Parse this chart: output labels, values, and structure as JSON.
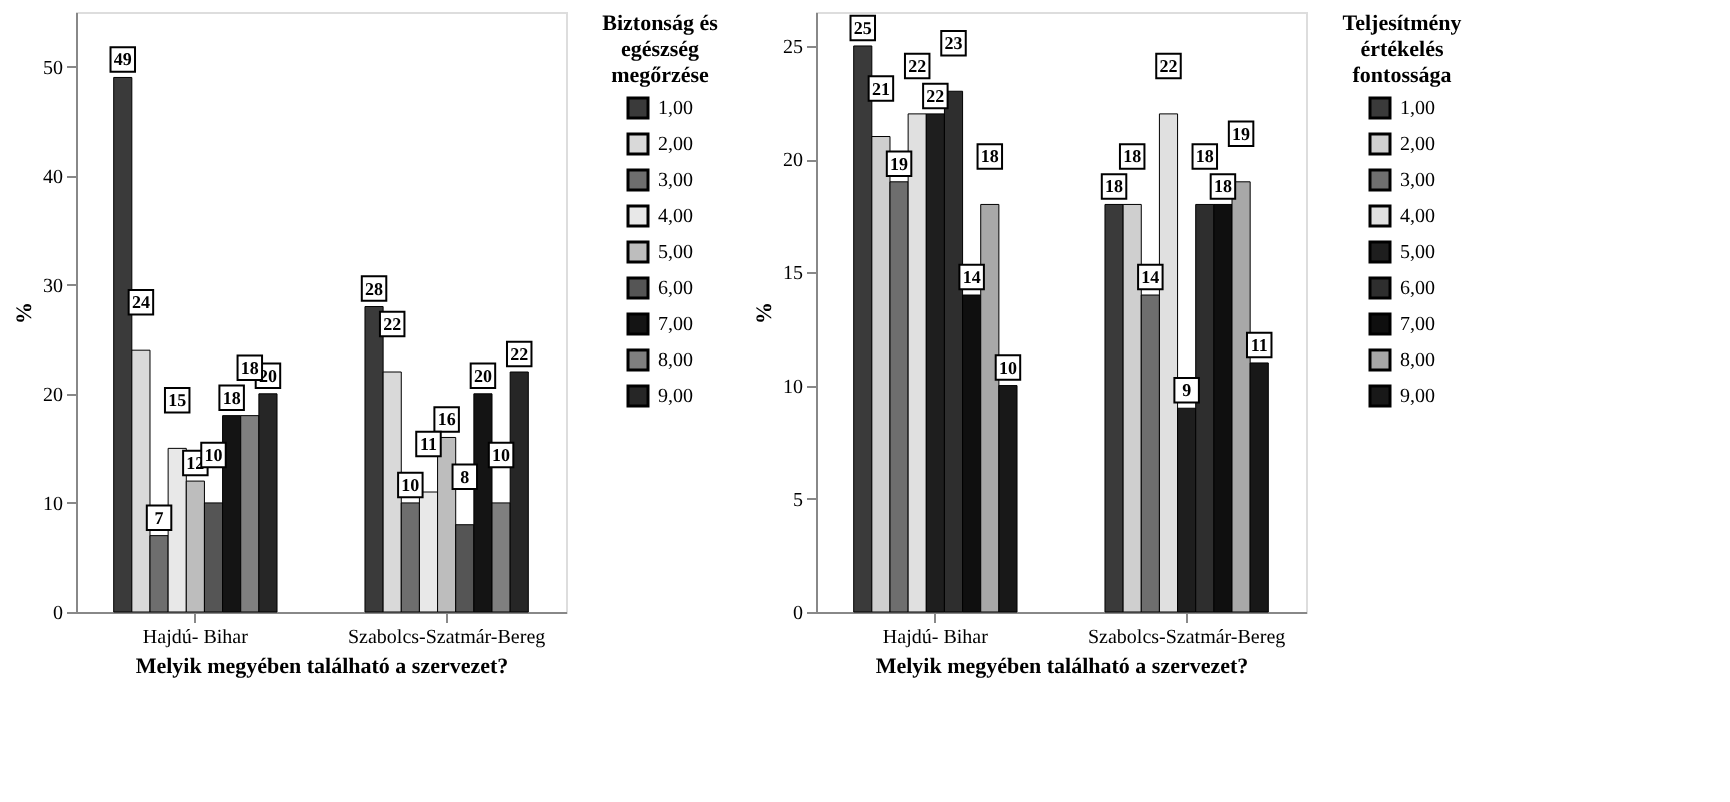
{
  "chart_data": [
    {
      "type": "bar",
      "categories": [
        "Hajdú- Bihar",
        "Szabolcs-Szatmár-Bereg"
      ],
      "xlabel": "Melyik megyében található a szervezet?",
      "ylabel": "%",
      "legend_title": "Biztonság és egészség megőrzése",
      "legend": "right",
      "data_labels": true,
      "grid": false,
      "ylim": [
        0,
        55
      ],
      "yticks": [
        0,
        10,
        20,
        30,
        40,
        50
      ],
      "series": [
        {
          "name": "1,00",
          "color": "#3a3a3a",
          "values": [
            49,
            28
          ]
        },
        {
          "name": "2,00",
          "color": "#d9d9d9",
          "values": [
            24,
            22
          ]
        },
        {
          "name": "3,00",
          "color": "#6e6e6e",
          "values": [
            7,
            10
          ]
        },
        {
          "name": "4,00",
          "color": "#e8e8e8",
          "values": [
            15,
            11
          ]
        },
        {
          "name": "5,00",
          "color": "#bdbdbd",
          "values": [
            12,
            16
          ]
        },
        {
          "name": "6,00",
          "color": "#555555",
          "values": [
            10,
            8
          ]
        },
        {
          "name": "7,00",
          "color": "#141414",
          "values": [
            18,
            20
          ]
        },
        {
          "name": "8,00",
          "color": "#7f7f7f",
          "values": [
            18,
            10
          ]
        },
        {
          "name": "9,00",
          "color": "#262626",
          "values": [
            20,
            22
          ]
        }
      ]
    },
    {
      "type": "bar",
      "categories": [
        "Hajdú- Bihar",
        "Szabolcs-Szatmár-Bereg"
      ],
      "xlabel": "Melyik megyében található a szervezet?",
      "ylabel": "%",
      "legend_title": "Teljesítmény értékelés fontossága",
      "legend": "right",
      "data_labels": true,
      "grid": false,
      "ylim": [
        0,
        26.5
      ],
      "yticks": [
        0,
        5,
        10,
        15,
        20,
        25
      ],
      "series": [
        {
          "name": "1,00",
          "color": "#3a3a3a",
          "values": [
            25,
            18
          ]
        },
        {
          "name": "2,00",
          "color": "#cfcfcf",
          "values": [
            21,
            18
          ]
        },
        {
          "name": "3,00",
          "color": "#6e6e6e",
          "values": [
            19,
            14
          ]
        },
        {
          "name": "4,00",
          "color": "#e0e0e0",
          "values": [
            22,
            22
          ]
        },
        {
          "name": "5,00",
          "color": "#1e1e1e",
          "values": [
            22,
            9
          ]
        },
        {
          "name": "6,00",
          "color": "#2e2e2e",
          "values": [
            23,
            18
          ]
        },
        {
          "name": "7,00",
          "color": "#0f0f0f",
          "values": [
            14,
            18
          ]
        },
        {
          "name": "8,00",
          "color": "#a8a8a8",
          "values": [
            18,
            19
          ]
        },
        {
          "name": "9,00",
          "color": "#181818",
          "values": [
            10,
            11
          ]
        }
      ]
    }
  ]
}
